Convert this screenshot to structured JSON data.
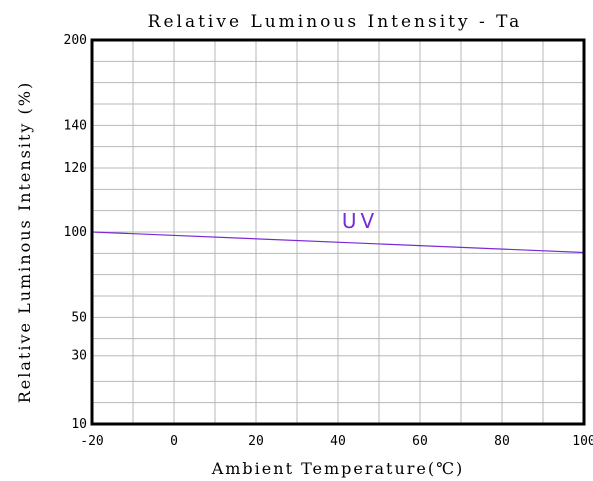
{
  "chart_data": {
    "type": "line",
    "title": "Relative Luminous Intensity - Ta",
    "xlabel": "Ambient Temperature(℃)",
    "ylabel": "Relative Luminous Intensity (%)",
    "xlim": [
      -20,
      100
    ],
    "x_ticks": [
      "-20",
      "0",
      "20",
      "40",
      "60",
      "80",
      "100"
    ],
    "x_tick_values": [
      -20,
      0,
      20,
      40,
      60,
      80,
      100
    ],
    "y_ticks": [
      "200",
      "140",
      "120",
      "100",
      "50",
      "30",
      "10"
    ],
    "y_scale_note": "non-linear: tick labels shown at fixed gridline levels",
    "y_tick_levels": [
      9,
      7,
      6,
      4.5,
      2.5,
      1.6,
      0
    ],
    "y_levels_max": 9,
    "minor_x_step": 10,
    "minor_y_levels": [
      0,
      0.5,
      1,
      1.6,
      2,
      2.5,
      3,
      3.5,
      4,
      4.5,
      5,
      5.5,
      6,
      6.5,
      7,
      7.5,
      8,
      8.5,
      9
    ],
    "grid": true,
    "series": [
      {
        "name": "UV",
        "color": "#7b2bd6",
        "x": [
          -20,
          100
        ],
        "y": [
          100,
          88
        ]
      }
    ]
  }
}
